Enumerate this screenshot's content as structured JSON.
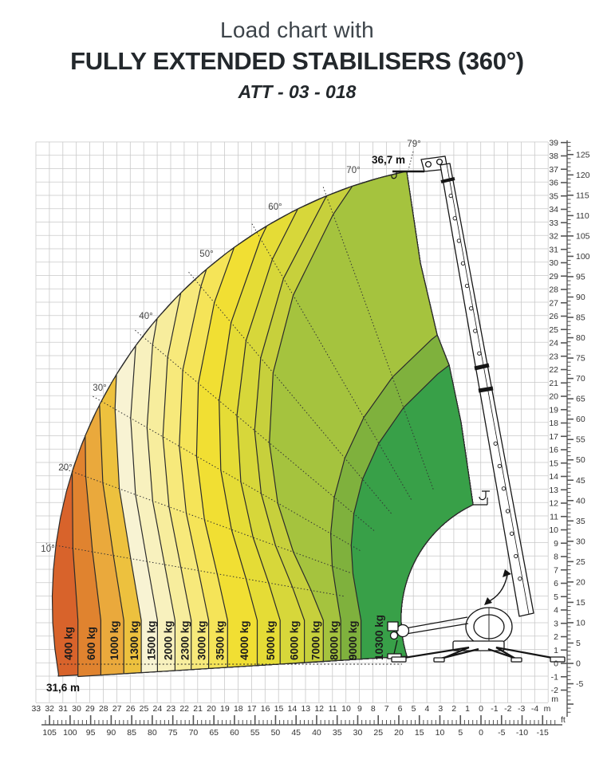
{
  "header": {
    "title_line1": "Load chart with",
    "title_line2": "FULLY EXTENDED STABILISERS (360°)",
    "title_line3": "ATT - 03 - 018"
  },
  "chart_data": {
    "type": "polar-load-chart",
    "title": "Load chart with FULLY EXTENDED STABILISERS (360°) — ATT - 03 - 018",
    "units": {
      "load": "kg",
      "height": "m / ft",
      "reach": "m / ft"
    },
    "zones": [
      {
        "label": "400 kg",
        "capacity_kg": 400,
        "max_outreach_m": 31.6,
        "color": "#D8632B"
      },
      {
        "label": "600 kg",
        "capacity_kg": 600,
        "max_outreach_m": 29.9,
        "color": "#E0832F"
      },
      {
        "label": "1000 kg",
        "capacity_kg": 1000,
        "max_outreach_m": 28.2,
        "color": "#EAA93C"
      },
      {
        "label": "1300 kg",
        "capacity_kg": 1300,
        "max_outreach_m": 26.5,
        "color": "#EDC13E"
      },
      {
        "label": "1500 kg",
        "capacity_kg": 1500,
        "max_outreach_m": 25.2,
        "color": "#F8F3D3"
      },
      {
        "label": "2000 kg",
        "capacity_kg": 2000,
        "max_outreach_m": 24.0,
        "color": "#F8F1BE"
      },
      {
        "label": "2300 kg",
        "capacity_kg": 2300,
        "max_outreach_m": 22.7,
        "color": "#F7ED9D"
      },
      {
        "label": "3000 kg",
        "capacity_kg": 3000,
        "max_outreach_m": 21.5,
        "color": "#F7E97B"
      },
      {
        "label": "3500 kg",
        "capacity_kg": 3500,
        "max_outreach_m": 20.2,
        "color": "#F5E458"
      },
      {
        "label": "4000 kg",
        "capacity_kg": 4000,
        "max_outreach_m": 18.8,
        "color": "#F1DF33"
      },
      {
        "label": "5000 kg",
        "capacity_kg": 5000,
        "max_outreach_m": 16.6,
        "color": "#E5DC36"
      },
      {
        "label": "6000 kg",
        "capacity_kg": 6000,
        "max_outreach_m": 14.9,
        "color": "#D7D73A"
      },
      {
        "label": "7000 kg",
        "capacity_kg": 7000,
        "max_outreach_m": 13.1,
        "color": "#C7D03C"
      },
      {
        "label": "8000 kg",
        "capacity_kg": 8000,
        "max_outreach_m": 11.7,
        "color": "#A5C33E"
      },
      {
        "label": "9000 kg",
        "capacity_kg": 9000,
        "max_outreach_m": 10.4,
        "color": "#7FB13D"
      },
      {
        "label": "10300 kg",
        "capacity_kg": 10300,
        "max_outreach_m": 8.9,
        "color": "#38A048"
      }
    ],
    "min_outreach_m": 5.5,
    "boom_angle_lines_deg": [
      10,
      20,
      30,
      40,
      50,
      60,
      70,
      79
    ],
    "max_boom_angle_deg": 79,
    "annotations": {
      "max_height": "36,7 m",
      "max_height_m": 36.7,
      "max_reach": "31,6 m",
      "max_reach_m": 31.6
    },
    "height_axis": {
      "m_unit": "m",
      "ft_unit": "ft",
      "m_ticks": [
        39,
        38,
        37,
        36,
        35,
        34,
        33,
        32,
        31,
        30,
        29,
        28,
        27,
        26,
        25,
        24,
        23,
        22,
        21,
        20,
        19,
        18,
        17,
        16,
        15,
        14,
        13,
        12,
        11,
        10,
        9,
        8,
        7,
        6,
        5,
        4,
        3,
        2,
        1,
        0,
        -1,
        -2
      ],
      "ft_ticks": [
        125,
        120,
        115,
        110,
        105,
        100,
        95,
        90,
        85,
        80,
        75,
        70,
        65,
        60,
        55,
        50,
        45,
        40,
        35,
        30,
        25,
        20,
        15,
        10,
        5,
        0,
        -5
      ]
    },
    "reach_axis": {
      "m_unit": "m",
      "ft_unit": "ft",
      "m_ticks": [
        33,
        32,
        31,
        30,
        29,
        28,
        27,
        26,
        25,
        24,
        23,
        22,
        21,
        20,
        19,
        18,
        17,
        16,
        15,
        14,
        13,
        12,
        11,
        10,
        9,
        8,
        7,
        6,
        5,
        4,
        3,
        2,
        1,
        0,
        -1,
        -2,
        -3,
        -4
      ],
      "ft_ticks": [
        105,
        100,
        95,
        90,
        85,
        80,
        75,
        70,
        65,
        60,
        55,
        50,
        45,
        40,
        35,
        30,
        25,
        20,
        15,
        10,
        5,
        0,
        -5,
        -10,
        -15
      ]
    },
    "grid": {
      "show": true,
      "step_m": 1
    }
  }
}
